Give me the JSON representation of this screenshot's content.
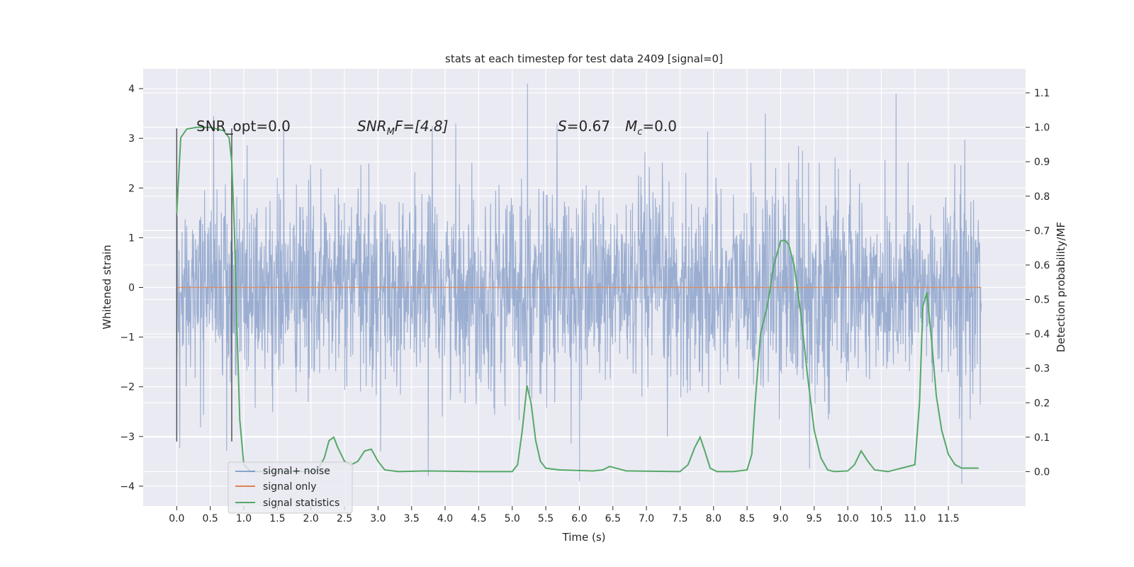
{
  "chart_data": {
    "type": "line",
    "title": "stats at each timestep for test data 2409 [signal=0]",
    "xlabel": "Time (s)",
    "ylabel": "Whitened strain",
    "y2label": "Detection probability/MF",
    "xlim": [
      -0.5,
      12.65
    ],
    "ylim": [
      -4.4,
      4.4
    ],
    "y2lim": [
      -0.1,
      1.17
    ],
    "x_ticks": [
      0.0,
      0.5,
      1.0,
      1.5,
      2.0,
      2.5,
      3.0,
      3.5,
      4.0,
      4.5,
      5.0,
      5.5,
      6.0,
      6.5,
      7.0,
      7.5,
      8.0,
      8.5,
      9.0,
      9.5,
      10.0,
      10.5,
      11.0,
      11.5
    ],
    "x_tick_labels": [
      "0.0",
      "0.5",
      "1.0",
      "1.5",
      "2.0",
      "2.5",
      "3.0",
      "3.5",
      "4.0",
      "4.5",
      "5.0",
      "5.5",
      "6.0",
      "6.5",
      "7.0",
      "7.5",
      "8.0",
      "8.5",
      "9.0",
      "9.5",
      "10.0",
      "10.5",
      "11.0",
      "11.5"
    ],
    "y_ticks": [
      -4,
      -3,
      -2,
      -1,
      0,
      1,
      2,
      3,
      4
    ],
    "y_tick_labels": [
      "−4",
      "−3",
      "−2",
      "−1",
      "0",
      "1",
      "2",
      "3",
      "4"
    ],
    "y2_ticks": [
      0.0,
      0.1,
      0.2,
      0.3,
      0.4,
      0.5,
      0.6,
      0.7,
      0.8,
      0.9,
      1.0,
      1.1
    ],
    "y2_tick_labels": [
      "0.0",
      "0.1",
      "0.2",
      "0.3",
      "0.4",
      "0.5",
      "0.6",
      "0.7",
      "0.8",
      "0.9",
      "1.0",
      "1.1"
    ],
    "grid": true,
    "legend_position": "bottom-left",
    "annotations": {
      "snr_opt": "SNR_opt=0.0",
      "snr_mf_base": "SNR",
      "snr_mf_sub": "M",
      "snr_mf_rest": "F=[4.8]",
      "s_label": "S",
      "s_value": "=0.67",
      "mc_base": "M",
      "mc_sub": "c",
      "mc_value": "=0.0"
    },
    "window_markers_x": [
      0.0,
      0.82
    ],
    "colors": {
      "noise": "#4c72b0",
      "signal": "#dd8452",
      "stats": "#55a868",
      "marker": "#555555",
      "background": "#eaeaf2",
      "grid": "#ffffff"
    },
    "series": [
      {
        "name": "signal+ noise",
        "color": "#4c72b0",
        "x_range": [
          0.0,
          11.99
        ],
        "sample_count": 2400,
        "typical_amplitude": 1.0,
        "peak_values": [
          {
            "x": 5.23,
            "y": 4.1
          },
          {
            "x": 10.72,
            "y": 3.9
          },
          {
            "x": 8.77,
            "y": 3.5
          },
          {
            "x": 0.55,
            "y": 3.45
          },
          {
            "x": 11.7,
            "y": -3.95
          },
          {
            "x": 6.0,
            "y": -3.9
          },
          {
            "x": 3.75,
            "y": -3.8
          },
          {
            "x": 9.43,
            "y": -3.65
          }
        ]
      },
      {
        "name": "signal only",
        "color": "#dd8452",
        "x": [
          0.0,
          11.99
        ],
        "y": [
          0.0,
          0.0
        ]
      },
      {
        "name": "signal statistics",
        "color": "#55a868",
        "x": [
          0.0,
          0.06,
          0.15,
          0.3,
          0.5,
          0.7,
          0.78,
          0.82,
          0.86,
          0.9,
          0.94,
          1.0,
          1.1,
          1.5,
          2.0,
          2.1,
          2.2,
          2.27,
          2.34,
          2.4,
          2.5,
          2.6,
          2.7,
          2.8,
          2.9,
          3.0,
          3.1,
          3.3,
          3.7,
          4.5,
          5.0,
          5.08,
          5.15,
          5.22,
          5.28,
          5.35,
          5.42,
          5.5,
          5.7,
          6.2,
          6.35,
          6.45,
          6.55,
          6.7,
          7.5,
          7.62,
          7.72,
          7.8,
          7.87,
          7.95,
          8.05,
          8.3,
          8.5,
          8.57,
          8.62,
          8.7,
          8.8,
          8.9,
          9.0,
          9.06,
          9.12,
          9.2,
          9.3,
          9.4,
          9.5,
          9.6,
          9.7,
          9.8,
          10.0,
          10.1,
          10.2,
          10.3,
          10.4,
          10.6,
          11.0,
          11.07,
          11.12,
          11.18,
          11.25,
          11.32,
          11.4,
          11.5,
          11.6,
          11.7,
          11.82,
          11.95
        ],
        "y": [
          0.75,
          0.97,
          0.995,
          1.0,
          1.0,
          0.99,
          0.97,
          0.9,
          0.7,
          0.4,
          0.15,
          0.02,
          0.0,
          0.0,
          0.0,
          0.005,
          0.04,
          0.09,
          0.1,
          0.07,
          0.03,
          0.02,
          0.03,
          0.06,
          0.065,
          0.03,
          0.005,
          0.0,
          0.002,
          0.0,
          0.0,
          0.02,
          0.12,
          0.25,
          0.2,
          0.09,
          0.03,
          0.01,
          0.005,
          0.002,
          0.005,
          0.015,
          0.01,
          0.002,
          0.0,
          0.02,
          0.07,
          0.1,
          0.06,
          0.01,
          0.0,
          0.0,
          0.005,
          0.05,
          0.2,
          0.4,
          0.48,
          0.6,
          0.67,
          0.672,
          0.66,
          0.6,
          0.46,
          0.28,
          0.12,
          0.04,
          0.005,
          0.0,
          0.002,
          0.02,
          0.06,
          0.03,
          0.005,
          0.0,
          0.02,
          0.2,
          0.48,
          0.52,
          0.38,
          0.22,
          0.12,
          0.05,
          0.02,
          0.01,
          0.01,
          0.01
        ]
      }
    ]
  }
}
